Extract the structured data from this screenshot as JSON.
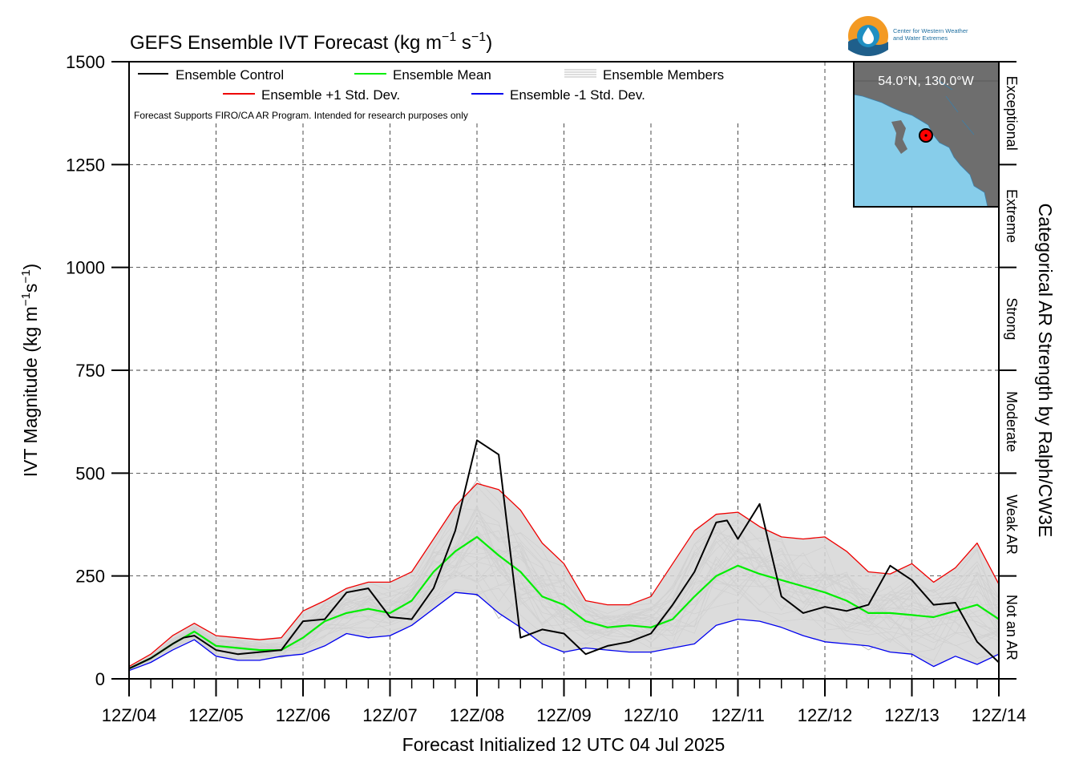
{
  "chart_data": {
    "type": "line",
    "title": "GEFS Ensemble IVT Forecast (kg m",
    "title_sup1": "−1",
    "title_mid": " s",
    "title_sup2": "−1",
    "title_end": ")",
    "ylabel": "IVT Magnitude (kg m",
    "ylabel_sup1": "−1",
    "ylabel_mid": "s",
    "ylabel_sup2": "−1",
    "ylabel_end": ")",
    "xlabel": "Forecast Initialized 12 UTC 04 Jul 2025",
    "right_label": "Categorical AR Strength by Ralph/CW3E",
    "note": "Forecast Supports FIRO/CA AR Program. Intended for research purposes only",
    "ylim": [
      0,
      1500
    ],
    "xlim": [
      0,
      240
    ],
    "yticks": [
      0,
      250,
      500,
      750,
      1000,
      1250,
      1500
    ],
    "ytick_labels": [
      "0",
      "250",
      "500",
      "750",
      "1000",
      "1250",
      "1500"
    ],
    "xtick_labels": [
      "12Z/04",
      "12Z/05",
      "12Z/06",
      "12Z/07",
      "12Z/08",
      "12Z/09",
      "12Z/10",
      "12Z/11",
      "12Z/12",
      "12Z/13",
      "12Z/14"
    ],
    "x_unit": "forecast hour",
    "categories": [
      "Not an AR",
      "Weak AR",
      "Moderate",
      "Strong",
      "Extreme",
      "Exceptional"
    ],
    "category_bounds": [
      0,
      250,
      500,
      750,
      1000,
      1250,
      1500
    ],
    "grid": true,
    "legend": {
      "control": "Ensemble Control",
      "mean": "Ensemble Mean",
      "members": "Ensemble Members",
      "plus": "Ensemble +1 Std. Dev.",
      "minus": "Ensemble -1 Std. Dev."
    },
    "colors": {
      "control": "#000000",
      "mean": "#00ee00",
      "plus": "#ee0000",
      "minus": "#0000ee",
      "members": "#b4b4b4",
      "shade": "#d6d6d6"
    },
    "series": [
      {
        "name": "Ensemble Control",
        "x": [
          0,
          6,
          12,
          15,
          18,
          24,
          30,
          36,
          42,
          48,
          54,
          60,
          66,
          72,
          78,
          84,
          90,
          96,
          102,
          108,
          114,
          120,
          126,
          132,
          138,
          144,
          150,
          156,
          162,
          165,
          168,
          174,
          180,
          186,
          192,
          198,
          204,
          210,
          216,
          222,
          228,
          234,
          240
        ],
        "values": [
          25,
          50,
          85,
          100,
          105,
          70,
          60,
          65,
          70,
          140,
          145,
          210,
          220,
          150,
          145,
          220,
          360,
          580,
          545,
          100,
          120,
          110,
          60,
          80,
          90,
          110,
          180,
          260,
          380,
          385,
          340,
          425,
          200,
          160,
          175,
          165,
          180,
          275,
          240,
          180,
          185,
          90,
          40
        ]
      },
      {
        "name": "Ensemble Mean",
        "x": [
          0,
          6,
          12,
          18,
          24,
          30,
          36,
          42,
          48,
          54,
          60,
          66,
          72,
          78,
          84,
          90,
          96,
          102,
          108,
          114,
          120,
          126,
          132,
          138,
          144,
          150,
          156,
          162,
          168,
          174,
          180,
          186,
          192,
          198,
          204,
          210,
          216,
          222,
          228,
          234,
          240
        ],
        "values": [
          25,
          50,
          85,
          115,
          80,
          75,
          70,
          70,
          100,
          140,
          160,
          170,
          160,
          190,
          260,
          310,
          345,
          300,
          260,
          200,
          180,
          140,
          125,
          130,
          125,
          145,
          200,
          250,
          275,
          255,
          240,
          225,
          210,
          190,
          160,
          160,
          155,
          150,
          165,
          180,
          145
        ]
      },
      {
        "name": "Ensemble +1 Std. Dev.",
        "x": [
          0,
          6,
          12,
          18,
          24,
          30,
          36,
          42,
          48,
          54,
          60,
          66,
          72,
          78,
          84,
          90,
          96,
          102,
          108,
          114,
          120,
          126,
          132,
          138,
          144,
          150,
          156,
          162,
          168,
          174,
          180,
          186,
          192,
          198,
          204,
          210,
          216,
          222,
          228,
          234,
          240
        ],
        "values": [
          30,
          60,
          105,
          135,
          105,
          100,
          95,
          100,
          165,
          190,
          220,
          235,
          235,
          260,
          340,
          420,
          475,
          460,
          410,
          330,
          280,
          190,
          180,
          180,
          200,
          280,
          360,
          400,
          405,
          370,
          345,
          340,
          345,
          310,
          260,
          255,
          280,
          235,
          270,
          330,
          230
        ]
      },
      {
        "name": "Ensemble -1 Std. Dev.",
        "x": [
          0,
          6,
          12,
          18,
          24,
          30,
          36,
          42,
          48,
          54,
          60,
          66,
          72,
          78,
          84,
          90,
          96,
          102,
          108,
          114,
          120,
          126,
          132,
          138,
          144,
          150,
          156,
          162,
          168,
          174,
          180,
          186,
          192,
          198,
          204,
          210,
          216,
          222,
          228,
          234,
          240
        ],
        "values": [
          20,
          40,
          70,
          95,
          55,
          45,
          45,
          55,
          60,
          80,
          110,
          100,
          105,
          130,
          170,
          210,
          205,
          160,
          125,
          85,
          65,
          75,
          70,
          65,
          65,
          75,
          85,
          130,
          145,
          140,
          125,
          105,
          90,
          85,
          80,
          65,
          60,
          30,
          55,
          35,
          60
        ]
      }
    ],
    "inset_map": {
      "label": "54.0°N, 130.0°W",
      "land_color": "#6e6e6e",
      "water_color": "#87cdea",
      "marker_color": "#ff0000"
    },
    "logo_text": [
      "Center for Western Weather",
      "and Water Extremes"
    ]
  }
}
